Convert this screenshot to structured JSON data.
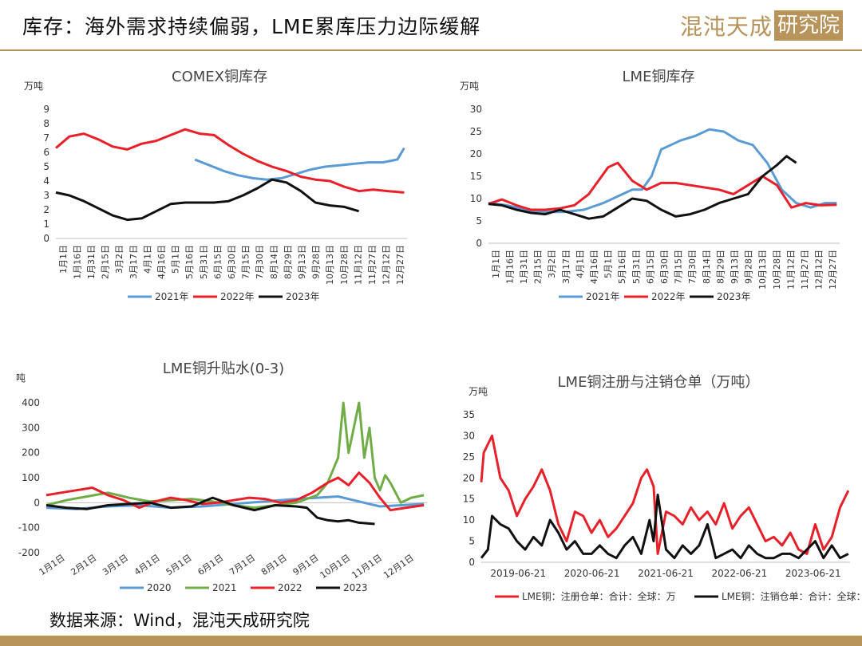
{
  "header": {
    "title": "库存：海外需求持续偏弱，LME累库压力边际缓解",
    "brand_main": "混沌天成",
    "brand_box": "研究院"
  },
  "source": "数据来源：Wind，混沌天成研究院",
  "colors": {
    "series_2021": "#5b9bd5",
    "series_2022": "#e8202a",
    "series_2023": "#111111",
    "series_2020": "#5b9bd5",
    "series_2021_spread": "#70ad47",
    "accent": "#b8935a"
  },
  "charts": {
    "comex": {
      "title": "COMEX铜库存",
      "unit": "万吨"
    },
    "lme_inv": {
      "title": "LME铜库存",
      "unit": "万吨"
    },
    "spread": {
      "title": "LME铜升贴水(0-3)",
      "unit": "吨"
    },
    "warrant": {
      "title": "LME铜注册与注销仓单（万吨）",
      "unit": "万吨"
    }
  },
  "chart_data": [
    {
      "type": "line",
      "title": "COMEX铜库存",
      "ylabel": "万吨",
      "ylim": [
        0,
        9
      ],
      "yticks": [
        0,
        1,
        2,
        3,
        4,
        5,
        6,
        7,
        8,
        9
      ],
      "x_tick_labels": [
        "1月1日",
        "1月16日",
        "1月31日",
        "2月15日",
        "3月2日",
        "3月17日",
        "4月1日",
        "4月16日",
        "5月1日",
        "5月16日",
        "5月31日",
        "6月15日",
        "6月30日",
        "7月15日",
        "7月30日",
        "8月14日",
        "8月29日",
        "9月13日",
        "9月28日",
        "10月13日",
        "10月28日",
        "11月12日",
        "11月27日",
        "12月12日",
        "12月27日"
      ],
      "legend_position": "bottom",
      "series": [
        {
          "name": "2021年",
          "color": "#5b9bd5",
          "x": [
            145,
            160,
            175,
            190,
            205,
            220,
            235,
            250,
            265,
            280,
            295,
            310,
            325,
            340,
            355,
            362
          ],
          "y": [
            5.5,
            5.1,
            4.7,
            4.4,
            4.2,
            4.1,
            4.2,
            4.5,
            4.8,
            5.0,
            5.1,
            5.2,
            5.3,
            5.3,
            5.5,
            6.3
          ]
        },
        {
          "name": "2022年",
          "color": "#e8202a",
          "x": [
            1,
            15,
            30,
            45,
            60,
            75,
            90,
            105,
            120,
            135,
            150,
            165,
            180,
            195,
            210,
            225,
            240,
            255,
            270,
            285,
            300,
            315,
            330,
            345,
            362
          ],
          "y": [
            6.3,
            7.1,
            7.3,
            6.9,
            6.4,
            6.2,
            6.6,
            6.8,
            7.2,
            7.6,
            7.3,
            7.2,
            6.5,
            5.9,
            5.4,
            5.0,
            4.7,
            4.3,
            4.1,
            4.0,
            3.6,
            3.3,
            3.4,
            3.3,
            3.2
          ]
        },
        {
          "name": "2023年",
          "color": "#111111",
          "x": [
            1,
            15,
            30,
            45,
            60,
            75,
            90,
            105,
            120,
            135,
            150,
            165,
            180,
            195,
            210,
            225,
            240,
            255,
            270,
            285,
            300,
            315
          ],
          "y": [
            3.2,
            3.0,
            2.6,
            2.1,
            1.6,
            1.3,
            1.4,
            1.9,
            2.4,
            2.5,
            2.5,
            2.5,
            2.6,
            3.0,
            3.5,
            4.1,
            3.9,
            3.3,
            2.5,
            2.3,
            2.2,
            1.9
          ]
        }
      ]
    },
    {
      "type": "line",
      "title": "LME铜库存",
      "ylabel": "万吨",
      "ylim": [
        0,
        30
      ],
      "yticks": [
        0,
        5,
        10,
        15,
        20,
        25,
        30
      ],
      "x_tick_labels": [
        "1月1日",
        "1月16日",
        "1月31日",
        "2月15日",
        "3月2日",
        "3月17日",
        "4月1日",
        "4月16日",
        "5月1日",
        "5月16日",
        "5月31日",
        "6月15日",
        "6月30日",
        "7月15日",
        "7月30日",
        "8月14日",
        "8月29日",
        "9月13日",
        "9月28日",
        "10月13日",
        "10月28日",
        "11月12日",
        "11月27日",
        "12月12日",
        "12月27日"
      ],
      "legend_position": "bottom",
      "series": [
        {
          "name": "2021年",
          "color": "#5b9bd5",
          "x": [
            1,
            20,
            40,
            60,
            80,
            100,
            120,
            140,
            150,
            160,
            170,
            180,
            190,
            200,
            215,
            230,
            245,
            260,
            275,
            290,
            305,
            320,
            335,
            350,
            362
          ],
          "y": [
            9,
            8.5,
            7.5,
            7,
            7,
            7.5,
            9,
            11,
            12,
            12,
            15,
            21,
            22,
            23,
            24,
            25.5,
            25,
            23,
            22,
            18,
            12,
            9,
            8,
            9,
            9
          ]
        },
        {
          "name": "2022年",
          "color": "#e8202a",
          "x": [
            1,
            15,
            30,
            45,
            60,
            75,
            90,
            105,
            115,
            125,
            135,
            150,
            165,
            180,
            195,
            210,
            225,
            240,
            255,
            270,
            285,
            300,
            315,
            330,
            345,
            362
          ],
          "y": [
            8.8,
            9.8,
            8.5,
            7.5,
            7.5,
            7.8,
            8.5,
            11,
            14,
            17,
            18,
            14,
            12,
            13.5,
            13.5,
            13,
            12.5,
            12,
            11,
            13,
            15,
            13,
            8,
            9,
            8.5,
            8.6
          ]
        },
        {
          "name": "2023年",
          "color": "#111111",
          "x": [
            1,
            15,
            30,
            45,
            60,
            75,
            90,
            105,
            120,
            135,
            150,
            165,
            180,
            195,
            210,
            225,
            240,
            255,
            270,
            285,
            300,
            310,
            320
          ],
          "y": [
            8.8,
            8.5,
            7.5,
            6.8,
            6.5,
            7.5,
            6.5,
            5.5,
            6,
            8,
            10,
            9.5,
            7.5,
            6,
            6.5,
            7.5,
            9,
            10,
            11,
            15,
            17.5,
            19.5,
            18
          ]
        }
      ]
    },
    {
      "type": "line",
      "title": "LME铜升贴水(0-3)",
      "ylabel": "吨",
      "ylim": [
        -200,
        400
      ],
      "yticks": [
        -200,
        -100,
        0,
        100,
        200,
        300,
        400
      ],
      "x_tick_labels": [
        "1月1日",
        "2月1日",
        "3月1日",
        "4月1日",
        "5月1日",
        "6月1日",
        "7月1日",
        "8月1日",
        "9月1日",
        "10月1日",
        "11月1日",
        "12月1日"
      ],
      "legend_position": "bottom",
      "series": [
        {
          "name": "2020",
          "color": "#5b9bd5",
          "x": [
            1,
            30,
            60,
            90,
            120,
            150,
            180,
            210,
            240,
            260,
            280,
            300,
            320,
            340,
            362
          ],
          "y": [
            -20,
            -25,
            -15,
            -10,
            -20,
            -15,
            -5,
            5,
            15,
            20,
            25,
            5,
            -15,
            -10,
            -5
          ]
        },
        {
          "name": "2021",
          "color": "#70ad47",
          "x": [
            1,
            20,
            40,
            60,
            80,
            100,
            120,
            140,
            160,
            180,
            200,
            220,
            240,
            260,
            270,
            280,
            285,
            290,
            295,
            300,
            305,
            310,
            315,
            320,
            325,
            330,
            340,
            350,
            362
          ],
          "y": [
            -10,
            10,
            25,
            40,
            20,
            5,
            10,
            15,
            5,
            -10,
            -20,
            -10,
            0,
            30,
            80,
            180,
            400,
            200,
            300,
            400,
            180,
            300,
            100,
            50,
            110,
            80,
            0,
            20,
            30
          ]
        },
        {
          "name": "2022",
          "color": "#e8202a",
          "x": [
            1,
            15,
            30,
            45,
            60,
            75,
            90,
            105,
            120,
            135,
            150,
            165,
            180,
            195,
            210,
            225,
            240,
            255,
            270,
            280,
            290,
            300,
            310,
            320,
            330,
            345,
            362
          ],
          "y": [
            30,
            40,
            50,
            60,
            30,
            10,
            -20,
            5,
            20,
            10,
            -5,
            0,
            10,
            20,
            15,
            0,
            10,
            40,
            80,
            100,
            70,
            120,
            80,
            20,
            -30,
            -20,
            -10
          ]
        },
        {
          "name": "2023",
          "color": "#111111",
          "x": [
            1,
            20,
            40,
            60,
            80,
            100,
            120,
            140,
            160,
            180,
            200,
            220,
            240,
            250,
            260,
            270,
            280,
            290,
            300,
            315
          ],
          "y": [
            -10,
            -20,
            -25,
            -10,
            -5,
            0,
            -20,
            -15,
            20,
            -10,
            -30,
            -10,
            -15,
            -20,
            -60,
            -70,
            -75,
            -70,
            -80,
            -85
          ]
        }
      ]
    },
    {
      "type": "line",
      "title": "LME铜注册与注销仓单（万吨）",
      "ylabel": "万吨",
      "ylim": [
        0,
        35
      ],
      "yticks": [
        0,
        5,
        10,
        15,
        20,
        25,
        30,
        35
      ],
      "x_tick_labels": [
        "2019-06-21",
        "2020-06-21",
        "2021-06-21",
        "2022-06-21",
        "2023-06-21"
      ],
      "x_range": [
        2019.47,
        2023.92
      ],
      "legend_position": "bottom",
      "series": [
        {
          "name": "LME铜：注册仓单：合计：全球：万",
          "color": "#e8202a",
          "x": [
            2019.47,
            2019.5,
            2019.55,
            2019.6,
            2019.65,
            2019.7,
            2019.8,
            2019.9,
            2020.0,
            2020.1,
            2020.2,
            2020.3,
            2020.4,
            2020.5,
            2020.6,
            2020.7,
            2020.8,
            2020.9,
            2021.0,
            2021.1,
            2021.2,
            2021.3,
            2021.4,
            2021.47,
            2021.55,
            2021.6,
            2021.7,
            2021.8,
            2021.9,
            2022.0,
            2022.1,
            2022.2,
            2022.3,
            2022.4,
            2022.5,
            2022.6,
            2022.7,
            2022.8,
            2022.9,
            2023.0,
            2023.1,
            2023.2,
            2023.3,
            2023.4,
            2023.5,
            2023.6,
            2023.7,
            2023.8,
            2023.9
          ],
          "y": [
            19,
            26,
            28,
            30,
            25,
            20,
            17,
            11,
            15,
            18,
            22,
            17,
            9,
            5,
            12,
            11,
            7,
            10,
            6,
            8,
            11,
            14,
            20,
            22,
            18,
            2,
            12,
            11,
            9,
            13,
            10,
            12,
            9,
            14,
            8,
            11,
            13,
            9,
            5,
            6,
            4,
            7,
            3,
            2,
            9,
            3,
            6,
            13,
            17
          ]
        },
        {
          "name": "LME铜：注销仓单：合计：全球：万",
          "color": "#111111",
          "x": [
            2019.47,
            2019.55,
            2019.6,
            2019.7,
            2019.8,
            2019.9,
            2020.0,
            2020.1,
            2020.2,
            2020.3,
            2020.4,
            2020.5,
            2020.6,
            2020.7,
            2020.8,
            2020.9,
            2021.0,
            2021.1,
            2021.2,
            2021.3,
            2021.4,
            2021.5,
            2021.55,
            2021.6,
            2021.7,
            2021.8,
            2021.9,
            2022.0,
            2022.1,
            2022.2,
            2022.3,
            2022.4,
            2022.5,
            2022.6,
            2022.7,
            2022.8,
            2022.9,
            2023.0,
            2023.1,
            2023.2,
            2023.3,
            2023.4,
            2023.5,
            2023.6,
            2023.7,
            2023.8,
            2023.9
          ],
          "y": [
            1,
            3,
            11,
            9,
            8,
            5,
            3,
            6,
            4,
            10,
            7,
            3,
            5,
            2,
            2,
            4,
            2,
            1,
            4,
            6,
            2,
            10,
            5,
            16,
            3,
            1,
            4,
            2,
            4,
            9,
            1,
            2,
            3,
            1,
            4,
            2,
            1,
            1,
            2,
            2,
            1,
            3,
            5,
            1,
            4,
            1,
            2
          ]
        }
      ]
    }
  ]
}
